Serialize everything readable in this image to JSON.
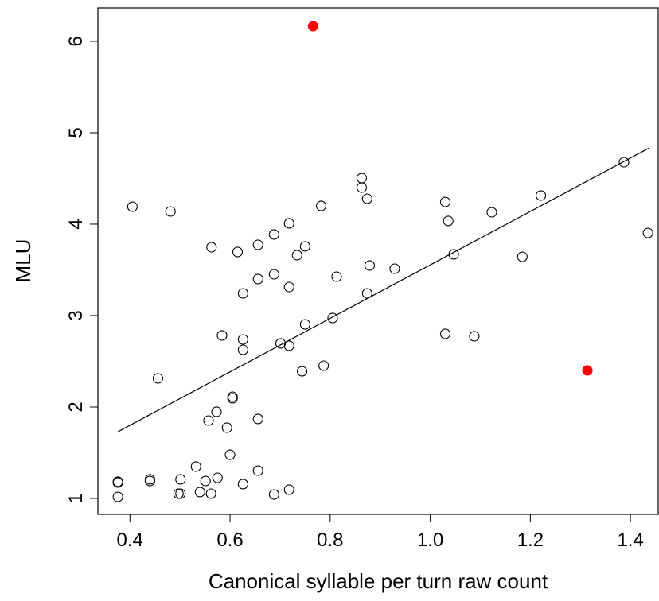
{
  "chart_data": {
    "type": "scatter",
    "xlabel": "Canonical syllable per turn raw count",
    "ylabel": "MLU",
    "xlim": [
      0.336,
      1.457
    ],
    "ylim": [
      0.826,
      6.365
    ],
    "xticks": [
      0.4,
      0.6,
      0.8,
      {
        "value": 1,
        "label": "1.0"
      },
      1.2,
      1.4
    ],
    "yticks": [
      1,
      2,
      3,
      4,
      5,
      6
    ],
    "series": [
      {
        "color": "#000000",
        "filled": false,
        "x": [
          0.376,
          0.376,
          0.376,
          0.44,
          0.44,
          0.405,
          0.456,
          0.481,
          0.497,
          0.501,
          0.501,
          0.532,
          0.54,
          0.551,
          0.562,
          0.563,
          0.557,
          0.573,
          0.575,
          0.584,
          0.594,
          0.6,
          0.605,
          0.605,
          0.615,
          0.626,
          0.626,
          0.626,
          0.626,
          0.656,
          0.656,
          0.656,
          0.656,
          0.688,
          0.688,
          0.688,
          0.701,
          0.718,
          0.718,
          0.718,
          0.718,
          0.734,
          0.744,
          0.75,
          0.75,
          0.782,
          0.787,
          0.805,
          0.813,
          0.863,
          0.863,
          0.874,
          0.874,
          0.879,
          0.929,
          1.03,
          1.03,
          1.036,
          1.047,
          1.088,
          1.123,
          1.184,
          1.221,
          1.387,
          1.435
        ],
        "y": [
          1.183,
          1.174,
          1.017,
          1.209,
          1.191,
          4.191,
          2.313,
          4.139,
          1.052,
          1.052,
          1.209,
          1.348,
          1.07,
          1.191,
          1.052,
          3.748,
          1.852,
          1.948,
          1.226,
          2.783,
          1.774,
          1.478,
          2.113,
          2.096,
          3.696,
          3.243,
          2.739,
          2.626,
          1.157,
          3.774,
          3.4,
          1.87,
          1.304,
          3.887,
          3.452,
          1.043,
          2.696,
          4.009,
          3.313,
          2.67,
          1.096,
          3.661,
          2.391,
          3.757,
          2.904,
          4.2,
          2.452,
          2.974,
          3.426,
          4.504,
          4.4,
          4.278,
          3.243,
          3.548,
          3.513,
          4.243,
          2.8,
          4.035,
          3.67,
          2.774,
          4.13,
          3.643,
          4.313,
          4.678,
          3.904
        ]
      },
      {
        "color": "#ff0000",
        "filled": true,
        "x": [
          0.766,
          1.314
        ],
        "y": [
          6.165,
          2.4
        ]
      }
    ],
    "fit_line": {
      "color": "#000000",
      "x": [
        0.376,
        1.438
      ],
      "y": [
        1.73,
        4.835
      ]
    }
  }
}
